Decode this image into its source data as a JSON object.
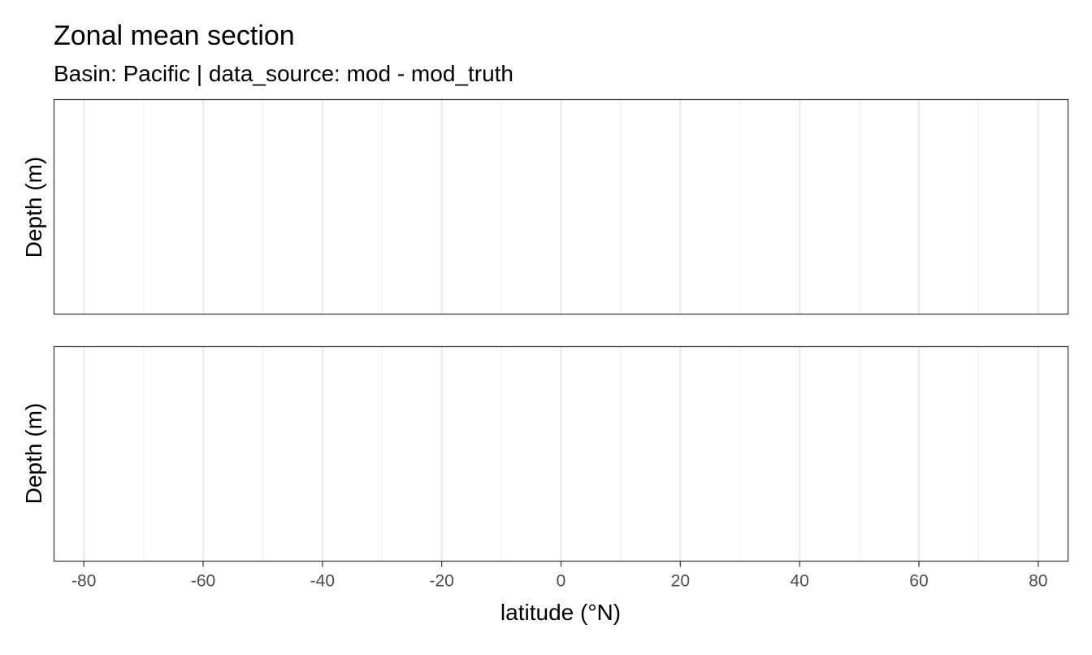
{
  "chart_data": {
    "type": "heatmap",
    "title": "Zonal mean section",
    "subtitle": "Basin: Pacific | data_source: mod - mod_truth",
    "xlabel": "latitude (°N)",
    "panels": [
      {
        "ylabel": "Depth (m)",
        "values": []
      },
      {
        "ylabel": "Depth (m)",
        "values": []
      }
    ],
    "xlim": [
      -85,
      85
    ],
    "x_major_ticks": [
      -80,
      -60,
      -40,
      -20,
      0,
      20,
      40,
      60,
      80
    ],
    "x_minor_ticks": [
      -70,
      -50,
      -30,
      -10,
      10,
      30,
      50,
      70
    ],
    "grid": true,
    "colors": {
      "panel_border": "#333333",
      "grid_major": "#ebebeb",
      "grid_minor": "#f2f2f2",
      "tick_text": "#4d4d4d"
    }
  }
}
